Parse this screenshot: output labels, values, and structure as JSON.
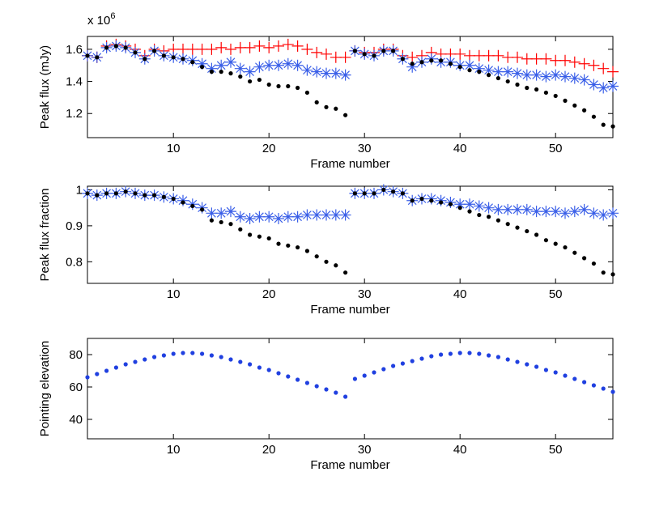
{
  "chart_data": [
    {
      "type": "scatter",
      "ylabel": "Peak flux (mJy)",
      "xlabel": "Frame number",
      "y_multiplier_base": "x 10",
      "y_multiplier_exponent": "6",
      "xlim": [
        1,
        56
      ],
      "xticks": [
        10,
        20,
        30,
        40,
        50
      ],
      "ylim": [
        1.05,
        1.68
      ],
      "yticks": [
        1.2,
        1.4,
        1.6
      ],
      "x": [
        1,
        2,
        3,
        4,
        5,
        6,
        7,
        8,
        9,
        10,
        11,
        12,
        13,
        14,
        15,
        16,
        17,
        18,
        19,
        20,
        21,
        22,
        23,
        24,
        25,
        26,
        27,
        28,
        29,
        30,
        31,
        32,
        33,
        34,
        35,
        36,
        37,
        38,
        39,
        40,
        41,
        42,
        43,
        44,
        45,
        46,
        47,
        48,
        49,
        50,
        51,
        52,
        53,
        54,
        55,
        56
      ],
      "series": [
        {
          "color": "#ff0000",
          "marker": "plus",
          "values": [
            1.56,
            1.55,
            1.62,
            1.63,
            1.62,
            1.6,
            1.56,
            1.6,
            1.59,
            1.6,
            1.6,
            1.6,
            1.6,
            1.6,
            1.61,
            1.6,
            1.61,
            1.61,
            1.62,
            1.61,
            1.62,
            1.63,
            1.62,
            1.6,
            1.58,
            1.57,
            1.55,
            1.55,
            1.59,
            1.58,
            1.58,
            1.6,
            1.6,
            1.56,
            1.55,
            1.56,
            1.58,
            1.57,
            1.57,
            1.57,
            1.56,
            1.56,
            1.56,
            1.56,
            1.55,
            1.55,
            1.54,
            1.54,
            1.54,
            1.53,
            1.53,
            1.52,
            1.51,
            1.5,
            1.48,
            1.46
          ]
        },
        {
          "color": "#3a5fe8",
          "marker": "star",
          "values": [
            1.56,
            1.55,
            1.61,
            1.62,
            1.61,
            1.58,
            1.54,
            1.59,
            1.56,
            1.55,
            1.54,
            1.53,
            1.51,
            1.48,
            1.5,
            1.52,
            1.48,
            1.46,
            1.49,
            1.5,
            1.5,
            1.51,
            1.5,
            1.47,
            1.46,
            1.45,
            1.45,
            1.44,
            1.59,
            1.57,
            1.56,
            1.59,
            1.59,
            1.54,
            1.49,
            1.52,
            1.54,
            1.52,
            1.52,
            1.5,
            1.5,
            1.48,
            1.47,
            1.46,
            1.46,
            1.45,
            1.44,
            1.44,
            1.43,
            1.44,
            1.43,
            1.42,
            1.41,
            1.38,
            1.36,
            1.37
          ]
        },
        {
          "color": "#000000",
          "marker": "dot",
          "values": [
            1.56,
            1.55,
            1.61,
            1.62,
            1.61,
            1.58,
            1.54,
            1.59,
            1.56,
            1.55,
            1.54,
            1.52,
            1.49,
            1.46,
            1.46,
            1.45,
            1.43,
            1.4,
            1.41,
            1.38,
            1.37,
            1.37,
            1.36,
            1.33,
            1.27,
            1.24,
            1.23,
            1.19,
            1.59,
            1.57,
            1.56,
            1.59,
            1.59,
            1.54,
            1.51,
            1.52,
            1.53,
            1.53,
            1.51,
            1.49,
            1.47,
            1.46,
            1.44,
            1.42,
            1.4,
            1.38,
            1.36,
            1.35,
            1.33,
            1.31,
            1.28,
            1.25,
            1.22,
            1.18,
            1.13,
            1.12
          ]
        }
      ]
    },
    {
      "type": "scatter",
      "ylabel": "Peak flux fraction",
      "xlabel": "Frame number",
      "xlim": [
        1,
        56
      ],
      "xticks": [
        10,
        20,
        30,
        40,
        50
      ],
      "ylim": [
        0.74,
        1.01
      ],
      "yticks": [
        0.8,
        0.9,
        1
      ],
      "x": [
        1,
        2,
        3,
        4,
        5,
        6,
        7,
        8,
        9,
        10,
        11,
        12,
        13,
        14,
        15,
        16,
        17,
        18,
        19,
        20,
        21,
        22,
        23,
        24,
        25,
        26,
        27,
        28,
        29,
        30,
        31,
        32,
        33,
        34,
        35,
        36,
        37,
        38,
        39,
        40,
        41,
        42,
        43,
        44,
        45,
        46,
        47,
        48,
        49,
        50,
        51,
        52,
        53,
        54,
        55,
        56
      ],
      "series": [
        {
          "color": "#3a5fe8",
          "marker": "star",
          "values": [
            0.99,
            0.985,
            0.99,
            0.99,
            0.995,
            0.99,
            0.985,
            0.985,
            0.98,
            0.975,
            0.97,
            0.96,
            0.95,
            0.935,
            0.935,
            0.94,
            0.925,
            0.92,
            0.925,
            0.925,
            0.92,
            0.925,
            0.925,
            0.93,
            0.93,
            0.93,
            0.93,
            0.93,
            0.99,
            0.99,
            0.99,
            1.0,
            0.995,
            0.99,
            0.97,
            0.975,
            0.975,
            0.97,
            0.965,
            0.96,
            0.96,
            0.955,
            0.95,
            0.945,
            0.945,
            0.945,
            0.945,
            0.94,
            0.94,
            0.94,
            0.935,
            0.94,
            0.945,
            0.935,
            0.93,
            0.935
          ]
        },
        {
          "color": "#000000",
          "marker": "dot",
          "values": [
            0.99,
            0.985,
            0.99,
            0.99,
            0.995,
            0.99,
            0.985,
            0.985,
            0.98,
            0.975,
            0.965,
            0.955,
            0.945,
            0.915,
            0.91,
            0.905,
            0.89,
            0.875,
            0.87,
            0.865,
            0.85,
            0.845,
            0.84,
            0.83,
            0.815,
            0.8,
            0.79,
            0.77,
            0.99,
            0.99,
            0.99,
            1.0,
            0.995,
            0.99,
            0.97,
            0.975,
            0.97,
            0.965,
            0.96,
            0.95,
            0.94,
            0.93,
            0.925,
            0.915,
            0.905,
            0.895,
            0.885,
            0.875,
            0.86,
            0.85,
            0.84,
            0.825,
            0.81,
            0.795,
            0.77,
            0.765
          ]
        }
      ]
    },
    {
      "type": "scatter",
      "ylabel": "Pointing elevation",
      "xlabel": "Frame number",
      "xlim": [
        1,
        56
      ],
      "xticks": [
        10,
        20,
        30,
        40,
        50
      ],
      "ylim": [
        28,
        90
      ],
      "yticks": [
        40,
        60,
        80
      ],
      "x": [
        1,
        2,
        3,
        4,
        5,
        6,
        7,
        8,
        9,
        10,
        11,
        12,
        13,
        14,
        15,
        16,
        17,
        18,
        19,
        20,
        21,
        22,
        23,
        24,
        25,
        26,
        27,
        28,
        29,
        30,
        31,
        32,
        33,
        34,
        35,
        36,
        37,
        38,
        39,
        40,
        41,
        42,
        43,
        44,
        45,
        46,
        47,
        48,
        49,
        50,
        51,
        52,
        53,
        54,
        55,
        56
      ],
      "series": [
        {
          "color": "#2040e0",
          "marker": "dot",
          "values": [
            66,
            68,
            70,
            72,
            74,
            75.5,
            77,
            78.5,
            79.5,
            80.5,
            81,
            81,
            80.5,
            79.5,
            78.5,
            77,
            75.5,
            74,
            72,
            70.5,
            68.5,
            66.5,
            64.5,
            62.5,
            60.5,
            58.5,
            56.5,
            54,
            65,
            67,
            69,
            71,
            73,
            74.5,
            76,
            77.5,
            79,
            80,
            80.5,
            81,
            81,
            80.5,
            79.5,
            78.5,
            77,
            75.5,
            74,
            72.5,
            70.5,
            69,
            67,
            65,
            63,
            61,
            59,
            57
          ]
        }
      ]
    }
  ]
}
